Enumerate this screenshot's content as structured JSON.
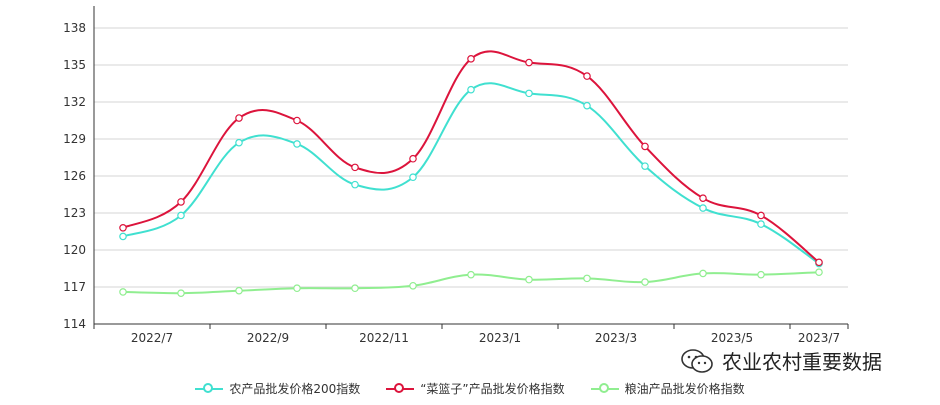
{
  "chart_data": {
    "type": "line",
    "title": "",
    "xlabel": "",
    "ylabel": "",
    "x": [
      "2022/7",
      "2022/8",
      "2022/9",
      "2022/10",
      "2022/11",
      "2022/12",
      "2023/1",
      "2023/2",
      "2023/3",
      "2023/4",
      "2023/5",
      "2023/6",
      "2023/7"
    ],
    "x_tick_labels": [
      "2022/7",
      "2022/9",
      "2022/11",
      "2023/1",
      "2023/3",
      "2023/5",
      "2023/7"
    ],
    "ylim": [
      114,
      138
    ],
    "y_ticks": [
      114,
      117,
      120,
      123,
      126,
      129,
      132,
      135,
      138
    ],
    "grid": true,
    "legend_position": "bottom",
    "series": [
      {
        "name": "农产品批发价格200指数",
        "color": "#40e0d0",
        "values": [
          121.1,
          122.8,
          128.7,
          128.6,
          125.3,
          125.9,
          133.0,
          132.7,
          131.7,
          126.8,
          123.4,
          122.1,
          118.9
        ]
      },
      {
        "name": "“菜篮子”产品批发价格指数",
        "color": "#dc143c",
        "values": [
          121.8,
          123.9,
          130.7,
          130.5,
          126.7,
          127.4,
          135.5,
          135.2,
          134.1,
          128.4,
          124.2,
          122.8,
          119.0
        ]
      },
      {
        "name": "粮油产品批发价格指数",
        "color": "#90ee90",
        "values": [
          116.6,
          116.5,
          116.7,
          116.9,
          116.9,
          117.1,
          118.0,
          117.6,
          117.7,
          117.4,
          118.1,
          118.0,
          118.2
        ]
      }
    ]
  },
  "watermark_text": "农业农村重要数据"
}
